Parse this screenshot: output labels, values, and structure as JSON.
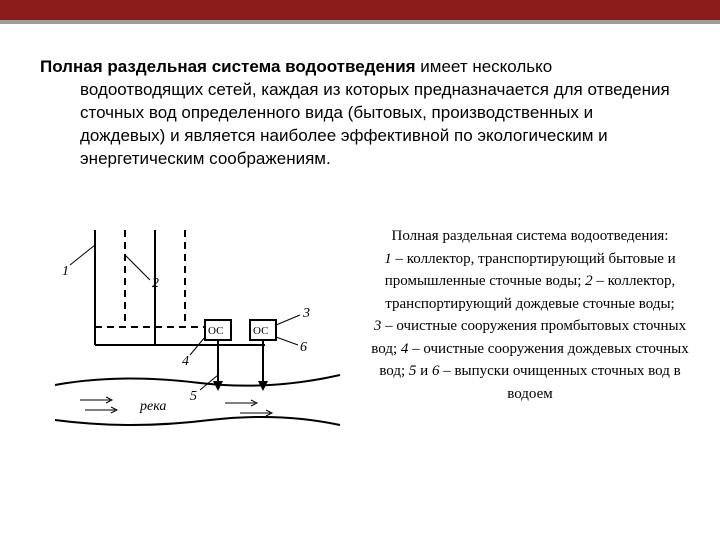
{
  "topbar": {
    "red_color": "#8b1a1a",
    "grey_color": "#9e9e9e",
    "red_height": 20,
    "grey_height": 4
  },
  "main": {
    "bold": "Полная раздельная система водоотведения",
    "rest_line1": " имеет несколько",
    "cont": "водоотводящих сетей, каждая из которых предназначается для отведения сточных вод определенного вида  (бытовых, производственных и дождевых) и является наиболее эффективной по экологическим и энергетическим соображениям."
  },
  "caption": {
    "title": "Полная раздельная система водоотведения:",
    "l1a": "1",
    "l1b": " – коллектор, транспортирующий бытовые и промышленные сточные воды; ",
    "l2a": "2",
    "l2b": " – коллектор, транспортирующий дождевые сточные воды;",
    "l3a": "3",
    "l3b": " – очистные сооружения промбытовых сточных вод; ",
    "l4a": "4",
    "l4b": " – очистные сооружения дождевых сточных вод; ",
    "l5a": "5",
    "l5mid": " и ",
    "l5c": "6",
    "l5b": " – выпуски очищенных сточных вод в водоем"
  },
  "diagram": {
    "stroke": "#000000",
    "text_color": "#000000",
    "labels": {
      "n1": "1",
      "n2": "2",
      "n3": "3",
      "n4": "4",
      "n5": "5",
      "n6": "6",
      "oc": "ОС",
      "river": "река"
    },
    "font_italic_size": 14,
    "font_label_size": 12
  }
}
